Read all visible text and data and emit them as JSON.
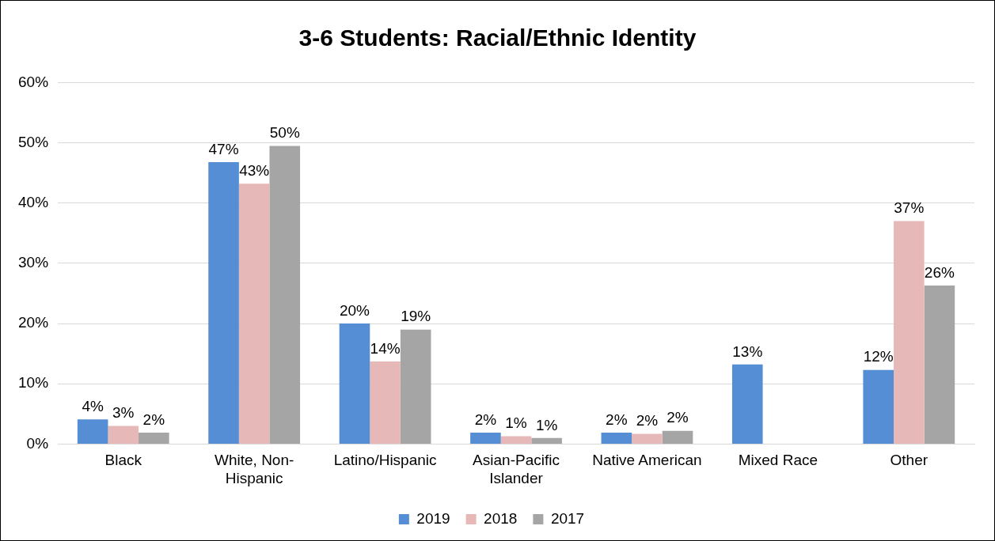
{
  "chart_data": {
    "type": "bar",
    "title": "3-6 Students: Racial/Ethnic Identity",
    "categories": [
      "Black",
      "White, Non-Hispanic",
      "Latino/Hispanic",
      "Asian-Pacific Islander",
      "Native American",
      "Mixed Race",
      "Other"
    ],
    "series": [
      {
        "name": "2019",
        "color": "#558ed5",
        "values": [
          4.1,
          46.8,
          20.0,
          1.9,
          1.9,
          13.2,
          12.3
        ],
        "value_labels": [
          "4%",
          "47%",
          "20%",
          "2%",
          "2%",
          "13%",
          "12%"
        ]
      },
      {
        "name": "2018",
        "color": "#e6b9b8",
        "values": [
          3.0,
          43.2,
          13.7,
          1.3,
          1.7,
          null,
          37.0
        ],
        "value_labels": [
          "3%",
          "43%",
          "14%",
          "1%",
          "2%",
          null,
          "37%"
        ]
      },
      {
        "name": "2017",
        "color": "#a5a5a5",
        "values": [
          1.9,
          49.5,
          19.0,
          1.0,
          2.2,
          null,
          26.3
        ],
        "value_labels": [
          "2%",
          "50%",
          "19%",
          "1%",
          "2%",
          null,
          "26%"
        ]
      }
    ],
    "ylim": [
      0,
      60
    ],
    "yticks": [
      {
        "value": 0,
        "label": "0%"
      },
      {
        "value": 10,
        "label": "10%"
      },
      {
        "value": 20,
        "label": "20%"
      },
      {
        "value": 30,
        "label": "30%"
      },
      {
        "value": 40,
        "label": "40%"
      },
      {
        "value": 50,
        "label": "50%"
      },
      {
        "value": 60,
        "label": "60%"
      }
    ],
    "grid": "y",
    "legend": "bottom"
  }
}
